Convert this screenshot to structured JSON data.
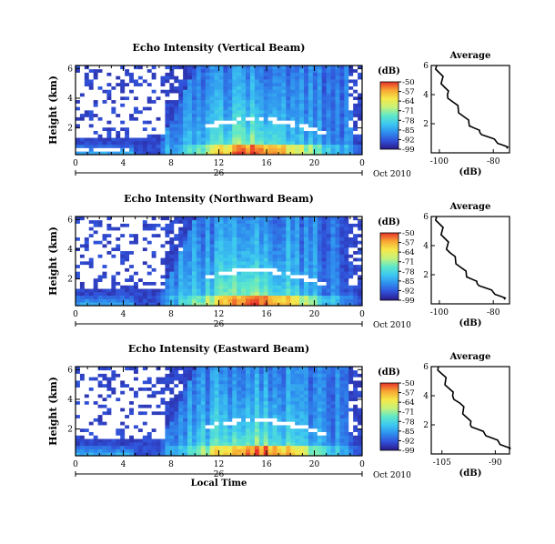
{
  "chart_data": [
    {
      "type": "heatmap",
      "title": "Echo Intensity (Vertical Beam)",
      "ylabel": "Height (km)",
      "xticks": [
        "0",
        "4",
        "8",
        "12",
        "16",
        "20",
        "0"
      ],
      "yticks": [
        "6",
        "4",
        "2"
      ],
      "date_day": "26",
      "date_label": "Oct 2010",
      "xlim": [
        0,
        24
      ],
      "ylim": [
        0.2,
        6.2
      ],
      "colorbar": {
        "unit": "(dB)",
        "ticks": [
          "-50",
          "-57",
          "-64",
          "-71",
          "-78",
          "-85",
          "-92",
          "-99"
        ],
        "range": [
          -99,
          -50
        ]
      },
      "profile": {
        "title": "Average",
        "xlabel": "(dB)",
        "xticks": [
          "-100",
          "-80"
        ],
        "yticks": [
          "6",
          "4",
          "2"
        ],
        "xlim": [
          -103,
          -74
        ],
        "x": [
          -101,
          -100,
          -99,
          -98,
          -97,
          -95,
          -93,
          -91,
          -89,
          -87,
          -85,
          -82,
          -79,
          -76,
          -75
        ],
        "y": [
          6.0,
          5.5,
          5.0,
          4.5,
          4.0,
          3.5,
          3.0,
          2.5,
          2.0,
          1.7,
          1.4,
          1.1,
          0.8,
          0.5,
          0.3
        ]
      }
    },
    {
      "type": "heatmap",
      "title": "Echo Intensity (Northward Beam)",
      "ylabel": "Height (km)",
      "xticks": [
        "0",
        "4",
        "8",
        "12",
        "16",
        "20",
        "0"
      ],
      "yticks": [
        "6",
        "4",
        "2"
      ],
      "date_day": "26",
      "date_label": "Oct 2010",
      "xlim": [
        0,
        24
      ],
      "ylim": [
        0.2,
        6.2
      ],
      "colorbar": {
        "unit": "(dB)",
        "ticks": [
          "-50",
          "-57",
          "-64",
          "-71",
          "-78",
          "-85",
          "-92",
          "-99"
        ],
        "range": [
          -99,
          -50
        ]
      },
      "profile": {
        "title": "Average",
        "xlabel": "(dB)",
        "xticks": [
          "-100",
          "-80"
        ],
        "yticks": [
          "6",
          "4",
          "2"
        ],
        "xlim": [
          -103,
          -74
        ],
        "x": [
          -101,
          -100,
          -99,
          -98,
          -97,
          -96,
          -94,
          -92,
          -90,
          -88,
          -86,
          -83,
          -80,
          -77,
          -76
        ],
        "y": [
          6.0,
          5.5,
          5.0,
          4.5,
          4.0,
          3.5,
          3.0,
          2.5,
          2.0,
          1.7,
          1.4,
          1.1,
          0.8,
          0.5,
          0.3
        ]
      }
    },
    {
      "type": "heatmap",
      "title": "Echo Intensity (Eastward Beam)",
      "ylabel": "Height (km)",
      "xlabel": "Local Time",
      "xticks": [
        "0",
        "4",
        "8",
        "12",
        "16",
        "20",
        "0"
      ],
      "yticks": [
        "6",
        "4",
        "2"
      ],
      "date_day": "26",
      "date_label": "Oct 2010",
      "xlim": [
        0,
        24
      ],
      "ylim": [
        0.2,
        6.2
      ],
      "colorbar": {
        "unit": "(dB)",
        "ticks": [
          "-50",
          "-57",
          "-64",
          "-71",
          "-78",
          "-85",
          "-92",
          "-99"
        ],
        "range": [
          -99,
          -50
        ]
      },
      "profile": {
        "title": "Average",
        "xlabel": "(dB)",
        "xticks": [
          "-105",
          "-90"
        ],
        "yticks": [
          "6",
          "4",
          "2"
        ],
        "xlim": [
          -108,
          -86
        ],
        "x": [
          -106,
          -105,
          -104,
          -103,
          -102,
          -100,
          -99,
          -98,
          -97,
          -95,
          -93,
          -91,
          -89,
          -87,
          -86
        ],
        "y": [
          6.0,
          5.5,
          5.0,
          4.5,
          4.0,
          3.5,
          3.0,
          2.5,
          2.0,
          1.7,
          1.4,
          1.1,
          0.8,
          0.5,
          0.3
        ]
      }
    }
  ],
  "colors": {
    "colormap": [
      "#2a1a8a",
      "#3050d8",
      "#2f8fef",
      "#3cc8f0",
      "#5fe8c8",
      "#c6f27a",
      "#f6e84a",
      "#f7a733",
      "#e8322a"
    ],
    "axis": "#000000",
    "noData": "#ffffff"
  }
}
